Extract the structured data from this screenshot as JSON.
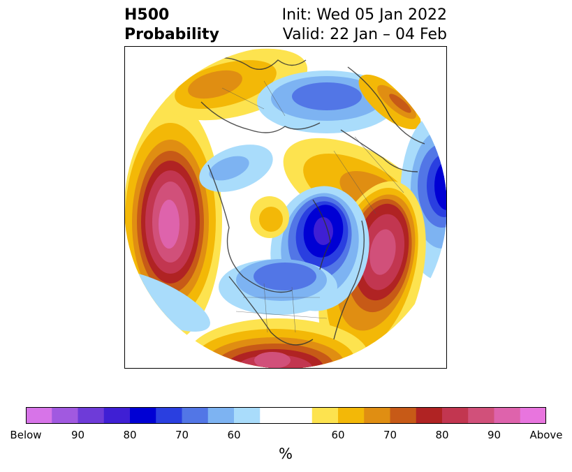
{
  "title": {
    "main": "H500",
    "sub": "Probability",
    "init": "Init: Wed 05 Jan 2022",
    "valid": "Valid: 22 Jan – 04 Feb"
  },
  "colorbar": {
    "unit": "%",
    "labels": [
      "Below",
      "90",
      "80",
      "70",
      "60",
      "60",
      "70",
      "80",
      "90",
      "Above"
    ],
    "colors": [
      "#d774e8",
      "#a159e0",
      "#6e3bd8",
      "#3f1fd4",
      "#0000d4",
      "#2a3fe0",
      "#5276e6",
      "#7db3f2",
      "#a9dcfb",
      "#ffffff",
      "#ffffff",
      "#fde34f",
      "#f3b807",
      "#e08e12",
      "#c75a17",
      "#b02323",
      "#c23650",
      "#d1507a",
      "#de63ac",
      "#e875de"
    ]
  },
  "map": {
    "projection": "north polar stereographic",
    "features": [
      "coastlines",
      "country borders",
      "state/province borders"
    ]
  }
}
